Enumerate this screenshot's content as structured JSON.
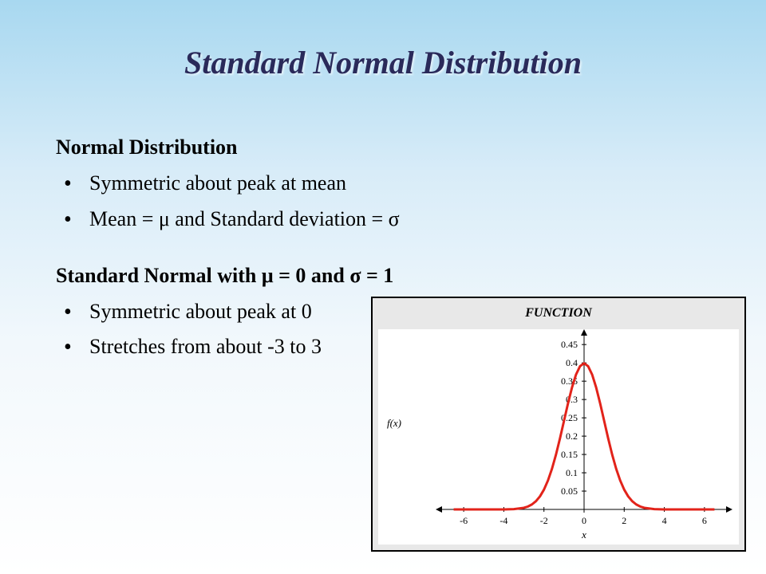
{
  "title": "Standard Normal Distribution",
  "section1": {
    "heading": "Normal Distribution",
    "bullets": [
      "Symmetric about peak at mean",
      "Mean = μ and Standard deviation = σ"
    ]
  },
  "section2": {
    "heading": "Standard Normal with μ = 0 and σ = 1",
    "bullets": [
      "Symmetric about peak at 0",
      "Stretches from about -3 to 3"
    ]
  },
  "chart": {
    "title": "FUNCTION",
    "type": "line",
    "x_label": "x",
    "y_label": "f(x)",
    "x_ticks": [
      -6,
      -4,
      -2,
      0,
      2,
      4,
      6
    ],
    "y_ticks": [
      0.05,
      0.1,
      0.15,
      0.2,
      0.25,
      0.3,
      0.35,
      0.4,
      0.45
    ],
    "xlim": [
      -7,
      7
    ],
    "ylim": [
      0,
      0.47
    ],
    "curve_color": "#e2231a",
    "curve_width": 3,
    "axis_color": "#000000",
    "background_color": "#ffffff",
    "frame_bg": "#e8e8e8",
    "tick_font_size": 12,
    "label_font_size": 13,
    "title_font_size": 16,
    "arrowheads": true,
    "curve_points": [
      [
        -6.5,
        0.0
      ],
      [
        -6.0,
        0.0
      ],
      [
        -5.5,
        0.0
      ],
      [
        -5.0,
        0.0
      ],
      [
        -4.5,
        0.0
      ],
      [
        -4.0,
        0.0001
      ],
      [
        -3.5,
        0.0009
      ],
      [
        -3.0,
        0.0044
      ],
      [
        -2.8,
        0.0079
      ],
      [
        -2.6,
        0.0136
      ],
      [
        -2.4,
        0.0224
      ],
      [
        -2.2,
        0.0355
      ],
      [
        -2.0,
        0.054
      ],
      [
        -1.8,
        0.079
      ],
      [
        -1.6,
        0.1109
      ],
      [
        -1.4,
        0.1497
      ],
      [
        -1.2,
        0.1942
      ],
      [
        -1.0,
        0.242
      ],
      [
        -0.8,
        0.2897
      ],
      [
        -0.6,
        0.3332
      ],
      [
        -0.4,
        0.3683
      ],
      [
        -0.2,
        0.391
      ],
      [
        0.0,
        0.3989
      ],
      [
        0.2,
        0.391
      ],
      [
        0.4,
        0.3683
      ],
      [
        0.6,
        0.3332
      ],
      [
        0.8,
        0.2897
      ],
      [
        1.0,
        0.242
      ],
      [
        1.2,
        0.1942
      ],
      [
        1.4,
        0.1497
      ],
      [
        1.6,
        0.1109
      ],
      [
        1.8,
        0.079
      ],
      [
        2.0,
        0.054
      ],
      [
        2.2,
        0.0355
      ],
      [
        2.4,
        0.0224
      ],
      [
        2.6,
        0.0136
      ],
      [
        2.8,
        0.0079
      ],
      [
        3.0,
        0.0044
      ],
      [
        3.5,
        0.0009
      ],
      [
        4.0,
        0.0001
      ],
      [
        4.5,
        0.0
      ],
      [
        5.0,
        0.0
      ],
      [
        5.5,
        0.0
      ],
      [
        6.0,
        0.0
      ],
      [
        6.5,
        0.0
      ]
    ]
  }
}
